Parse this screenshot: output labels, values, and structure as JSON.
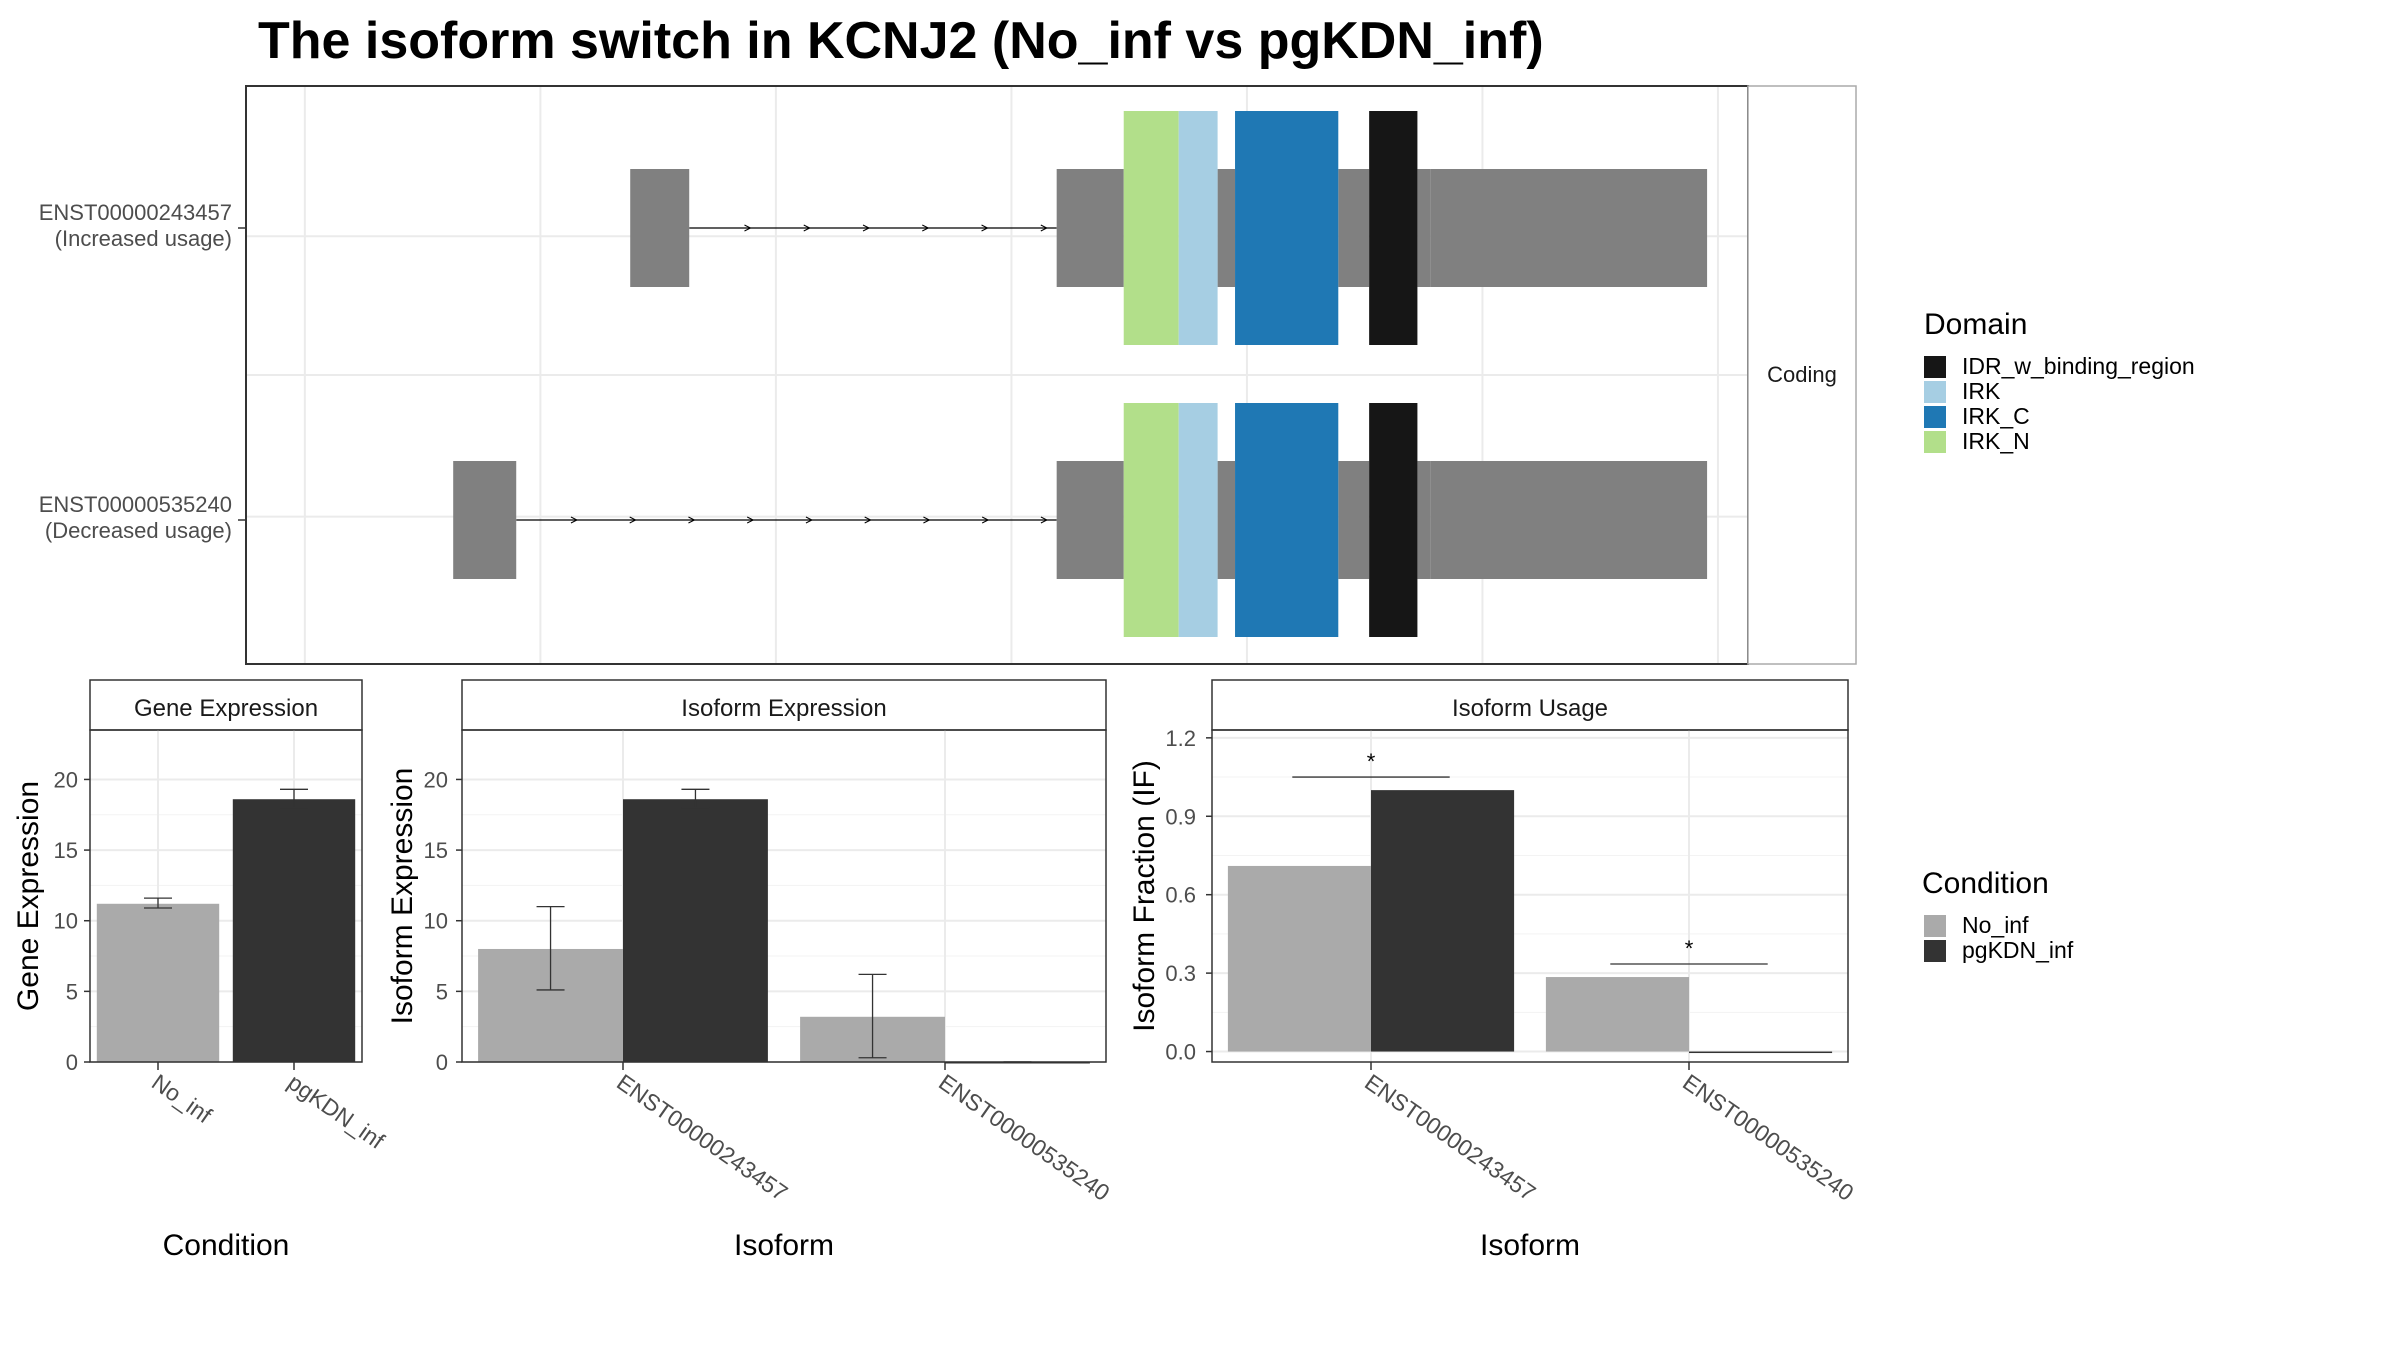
{
  "title": "The isoform switch in KCNJ2 (No_inf vs pgKDN_inf)",
  "transcripts": {
    "strip_label": "Coding",
    "isoforms": [
      {
        "id": "ENST00000243457",
        "usage": "(Increased usage)",
        "utr_exons": [
          [
            0.2865,
            0.3305
          ],
          [
            0.6045,
            0.6545
          ],
          [
            0.7245,
            0.7375
          ],
          [
            0.8145,
            0.8375
          ],
          [
            0.8735,
            0.8835
          ],
          [
            0.8835,
            1.0895
          ]
        ],
        "domains": [
          {
            "name": "IRK_N",
            "start": 0.6545,
            "end": 0.6955
          },
          {
            "name": "IRK",
            "start": 0.6955,
            "end": 0.7245
          },
          {
            "name": "IRK",
            "start": 0.7245,
            "end": 0.7245
          },
          {
            "name": "IRK_C",
            "start": 0.7375,
            "end": 0.8145
          },
          {
            "name": "IDR_w_binding_region",
            "start": 0.8375,
            "end": 0.8735
          }
        ],
        "intron": [
          0.3305,
          0.6045
        ]
      },
      {
        "id": "ENST00000535240",
        "usage": "(Decreased usage)",
        "utr_exons": [
          [
            0.1545,
            0.2015
          ],
          [
            0.6045,
            0.6545
          ],
          [
            0.7245,
            0.7375
          ],
          [
            0.8145,
            0.8375
          ],
          [
            0.8735,
            0.8835
          ],
          [
            0.8835,
            1.0895
          ]
        ],
        "domains": [
          {
            "name": "IRK_N",
            "start": 0.6545,
            "end": 0.6955
          },
          {
            "name": "IRK",
            "start": 0.6955,
            "end": 0.7245
          },
          {
            "name": "IRK_C",
            "start": 0.7375,
            "end": 0.8145
          },
          {
            "name": "IDR_w_binding_region",
            "start": 0.8375,
            "end": 0.8735
          }
        ],
        "intron": [
          0.2015,
          0.6045
        ]
      }
    ]
  },
  "domain_legend": {
    "title": "Domain",
    "items": [
      {
        "name": "IDR_w_binding_region",
        "color": "#161616"
      },
      {
        "name": "IRK",
        "color": "#a6cee3"
      },
      {
        "name": "IRK_C",
        "color": "#1f78b4"
      },
      {
        "name": "IRK_N",
        "color": "#b2df8a"
      }
    ],
    "utr_color": "#808080"
  },
  "condition_legend": {
    "title": "Condition",
    "items": [
      {
        "name": "No_inf",
        "color": "#aaaaaa"
      },
      {
        "name": "pgKDN_inf",
        "color": "#333333"
      }
    ]
  },
  "chart_data": [
    {
      "type": "bar",
      "title": "Gene Expression",
      "xlabel": "Condition",
      "ylabel": "Gene Expression",
      "ylim": [
        0,
        23.5
      ],
      "yticks": [
        0,
        5,
        10,
        15,
        20
      ],
      "categories": [
        "No_inf",
        "pgKDN_inf"
      ],
      "series": [
        {
          "name": "No_inf",
          "values": [
            11.2,
            null
          ],
          "errors": [
            [
              10.9,
              11.6
            ],
            null
          ]
        },
        {
          "name": "pgKDN_inf",
          "values": [
            null,
            18.6
          ],
          "errors": [
            null,
            [
              18.0,
              19.3
            ]
          ]
        }
      ]
    },
    {
      "type": "bar",
      "title": "Isoform Expression",
      "xlabel": "Isoform",
      "ylabel": "Isoform Expression",
      "ylim": [
        0,
        23.5
      ],
      "yticks": [
        0,
        5,
        10,
        15,
        20
      ],
      "categories": [
        "ENST00000243457",
        "ENST00000535240"
      ],
      "series": [
        {
          "name": "No_inf",
          "values": [
            8.0,
            3.2
          ],
          "errors": [
            [
              5.1,
              11.0
            ],
            [
              0.3,
              6.2
            ]
          ]
        },
        {
          "name": "pgKDN_inf",
          "values": [
            18.6,
            0.0
          ],
          "errors": [
            [
              18.0,
              19.3
            ],
            [
              0.0,
              0.0
            ]
          ]
        }
      ]
    },
    {
      "type": "bar",
      "title": "Isoform Usage",
      "xlabel": "Isoform",
      "ylabel": "Isoform Fraction (IF)",
      "ylim": [
        -0.04,
        1.23
      ],
      "yticks": [
        0.0,
        0.3,
        0.6,
        0.9,
        1.2
      ],
      "ytick_labels": [
        "0.0",
        "0.3",
        "0.6",
        "0.9",
        "1.2"
      ],
      "categories": [
        "ENST00000243457",
        "ENST00000535240"
      ],
      "series": [
        {
          "name": "No_inf",
          "values": [
            0.71,
            0.285
          ]
        },
        {
          "name": "pgKDN_inf",
          "values": [
            1.0,
            0.0
          ]
        }
      ],
      "significance": [
        {
          "category": "ENST00000243457",
          "y": 1.05,
          "label": "*"
        },
        {
          "category": "ENST00000535240",
          "y": 0.335,
          "label": "*"
        }
      ]
    }
  ]
}
